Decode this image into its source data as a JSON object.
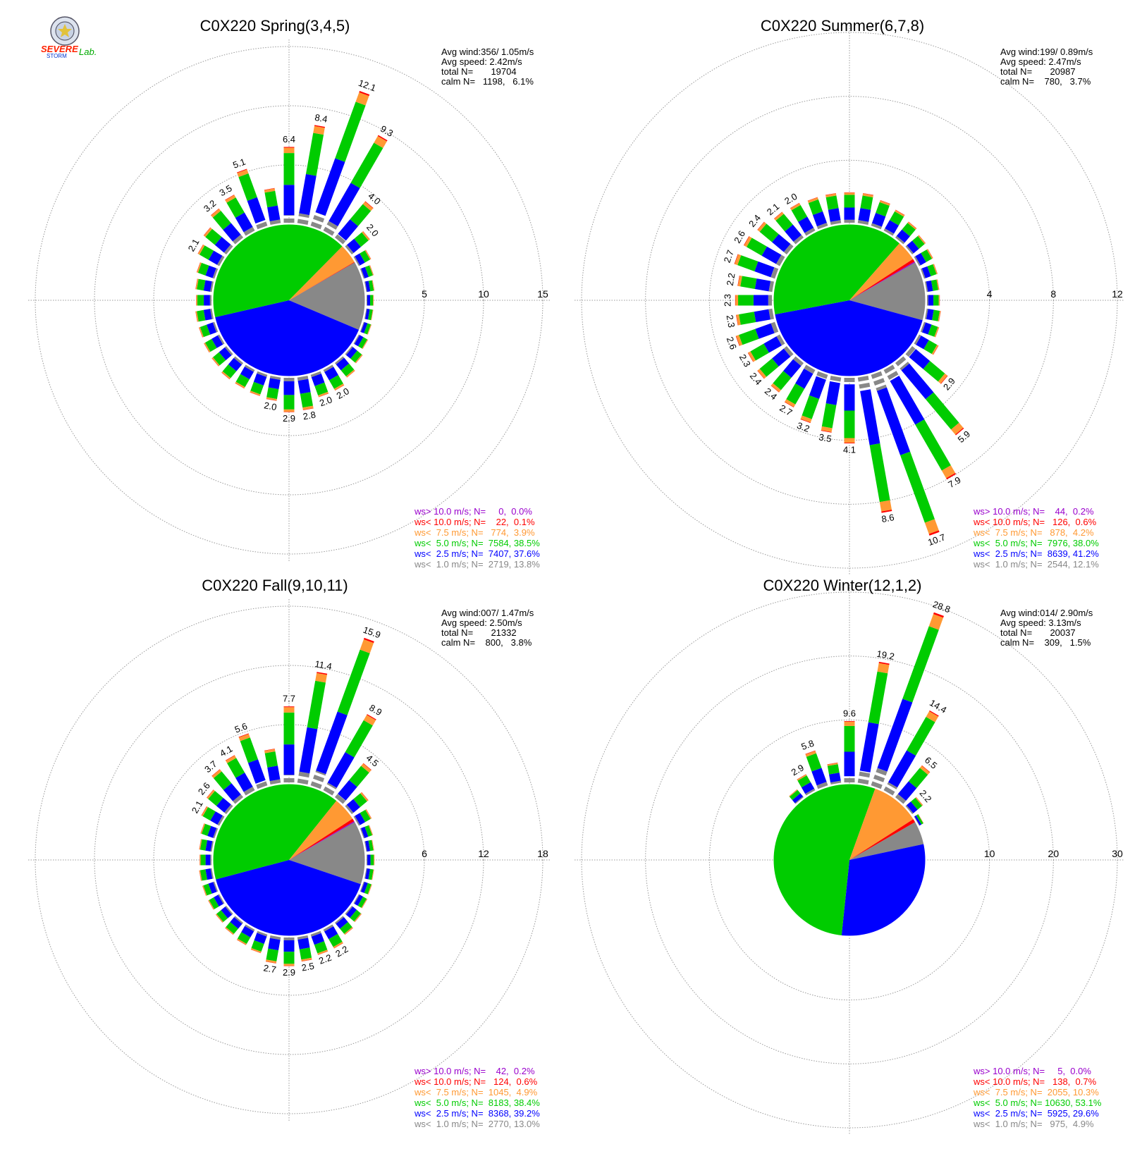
{
  "logo": {
    "line1": "SEVERE",
    "line2": "STORM",
    "line3": "Lab."
  },
  "colors": {
    "purple": "#9900cc",
    "red": "#ff0000",
    "orange": "#ff9933",
    "green": "#00cc00",
    "blue": "#0000ff",
    "gray": "#888888",
    "grid": "#999999"
  },
  "chart_data": [
    {
      "type": "polar-bar",
      "title": "C0X220 Spring(3,4,5)",
      "ring_labels": [
        "5",
        "10",
        "15"
      ],
      "rmax": 15,
      "stats": [
        "Avg wind:356/ 1.05m/s",
        "Avg speed: 2.42m/s",
        "total N=       19704",
        "calm N=   1198,   6.1%"
      ],
      "legend": [
        "ws> 10.0 m/s; N=     0,  0.0%",
        "ws< 10.0 m/s; N=    22,  0.1%",
        "ws<  7.5 m/s; N=   774,  3.9%",
        "ws<  5.0 m/s; N=  7584, 38.5%",
        "ws<  2.5 m/s; N=  7407, 37.6%",
        "ws<  1.0 m/s; N=  2719, 13.8%"
      ],
      "pie": [
        13.8,
        37.6,
        38.5,
        3.9,
        0.1,
        0.0
      ],
      "sectors": [
        {
          "deg": 10,
          "total": 8.4,
          "label": "8.4"
        },
        {
          "deg": 20,
          "total": 12.1,
          "label": "12.1"
        },
        {
          "deg": 30,
          "total": 9.3,
          "label": "9.3"
        },
        {
          "deg": 40,
          "total": 4.0,
          "label": "4.0"
        },
        {
          "deg": 50,
          "total": 2.0,
          "label": "2.0"
        },
        {
          "deg": 60,
          "total": 1.2
        },
        {
          "deg": 70,
          "total": 0.9
        },
        {
          "deg": 80,
          "total": 0.7
        },
        {
          "deg": 90,
          "total": 0.6
        },
        {
          "deg": 100,
          "total": 0.6
        },
        {
          "deg": 110,
          "total": 0.7
        },
        {
          "deg": 120,
          "total": 0.9
        },
        {
          "deg": 130,
          "total": 1.2
        },
        {
          "deg": 140,
          "total": 1.6
        },
        {
          "deg": 150,
          "total": 2.0,
          "label": "2.0"
        },
        {
          "deg": 160,
          "total": 2.0,
          "label": "2.0"
        },
        {
          "deg": 170,
          "total": 2.8,
          "label": "2.8"
        },
        {
          "deg": 180,
          "total": 2.9,
          "label": "2.9"
        },
        {
          "deg": 190,
          "total": 2.0,
          "label": "2.0"
        },
        {
          "deg": 200,
          "total": 1.9
        },
        {
          "deg": 210,
          "total": 1.8
        },
        {
          "deg": 220,
          "total": 1.8
        },
        {
          "deg": 230,
          "total": 1.6
        },
        {
          "deg": 240,
          "total": 1.5
        },
        {
          "deg": 250,
          "total": 1.4
        },
        {
          "deg": 260,
          "total": 1.4
        },
        {
          "deg": 270,
          "total": 1.3
        },
        {
          "deg": 280,
          "total": 1.4
        },
        {
          "deg": 290,
          "total": 1.6
        },
        {
          "deg": 300,
          "total": 2.1,
          "label": "2.1"
        },
        {
          "deg": 310,
          "total": 2.5
        },
        {
          "deg": 320,
          "total": 3.2,
          "label": "3.2"
        },
        {
          "deg": 330,
          "total": 3.5,
          "label": "3.5"
        },
        {
          "deg": 340,
          "total": 5.1,
          "label": "5.1"
        },
        {
          "deg": 350,
          "total": 3.0
        },
        {
          "deg": 360,
          "total": 6.4,
          "label": "6.4"
        }
      ]
    },
    {
      "type": "polar-bar",
      "title": "C0X220 Summer(6,7,8)",
      "ring_labels": [
        "4",
        "8",
        "12"
      ],
      "rmax": 12,
      "stats": [
        "Avg wind:199/ 0.89m/s",
        "Avg speed: 2.47m/s",
        "total N=       20987",
        "calm N=    780,   3.7%"
      ],
      "legend": [
        "ws> 10.0 m/s; N=    44,  0.2%",
        "ws< 10.0 m/s; N=   126,  0.6%",
        "ws<  7.5 m/s; N=   878,  4.2%",
        "ws<  5.0 m/s; N=  7976, 38.0%",
        "ws<  2.5 m/s; N=  8639, 41.2%",
        "ws<  1.0 m/s; N=  2544, 12.1%"
      ],
      "pie": [
        12.1,
        41.2,
        38.0,
        4.2,
        0.6,
        0.2
      ],
      "sectors": [
        {
          "deg": 10,
          "total": 1.9
        },
        {
          "deg": 20,
          "total": 1.7
        },
        {
          "deg": 30,
          "total": 1.5
        },
        {
          "deg": 40,
          "total": 1.3
        },
        {
          "deg": 50,
          "total": 1.1
        },
        {
          "deg": 60,
          "total": 1.0
        },
        {
          "deg": 70,
          "total": 0.9
        },
        {
          "deg": 80,
          "total": 0.8
        },
        {
          "deg": 90,
          "total": 0.8
        },
        {
          "deg": 100,
          "total": 0.9
        },
        {
          "deg": 110,
          "total": 1.0
        },
        {
          "deg": 120,
          "total": 1.4
        },
        {
          "deg": 130,
          "total": 2.9,
          "label": "2.9"
        },
        {
          "deg": 140,
          "total": 5.9,
          "label": "5.9"
        },
        {
          "deg": 150,
          "total": 7.9,
          "label": "7.9"
        },
        {
          "deg": 160,
          "total": 10.7,
          "label": "10.7"
        },
        {
          "deg": 170,
          "total": 8.6,
          "label": "8.6"
        },
        {
          "deg": 180,
          "total": 4.1,
          "label": "4.1"
        },
        {
          "deg": 190,
          "total": 3.5,
          "label": "3.5"
        },
        {
          "deg": 200,
          "total": 3.2,
          "label": "3.2"
        },
        {
          "deg": 210,
          "total": 2.7,
          "label": "2.7"
        },
        {
          "deg": 220,
          "total": 2.4,
          "label": "2.4"
        },
        {
          "deg": 230,
          "total": 2.4,
          "label": "2.4"
        },
        {
          "deg": 240,
          "total": 2.3,
          "label": "2.3"
        },
        {
          "deg": 250,
          "total": 2.6,
          "label": "2.6"
        },
        {
          "deg": 260,
          "total": 2.3,
          "label": "2.3"
        },
        {
          "deg": 270,
          "total": 2.3,
          "label": "2.3"
        },
        {
          "deg": 280,
          "total": 2.2,
          "label": "2.2"
        },
        {
          "deg": 290,
          "total": 2.7,
          "label": "2.7"
        },
        {
          "deg": 300,
          "total": 2.6,
          "label": "2.6"
        },
        {
          "deg": 310,
          "total": 2.4,
          "label": "2.4"
        },
        {
          "deg": 320,
          "total": 2.1,
          "label": "2.1"
        },
        {
          "deg": 330,
          "total": 2.0,
          "label": "2.0"
        },
        {
          "deg": 340,
          "total": 1.9
        },
        {
          "deg": 350,
          "total": 1.9
        },
        {
          "deg": 360,
          "total": 1.9
        }
      ]
    },
    {
      "type": "polar-bar",
      "title": "C0X220 Fall(9,10,11)",
      "ring_labels": [
        "6",
        "12",
        "18"
      ],
      "rmax": 18,
      "stats": [
        "Avg wind:007/ 1.47m/s",
        "Avg speed: 2.50m/s",
        "total N=       21332",
        "calm N=    800,   3.8%"
      ],
      "legend": [
        "ws> 10.0 m/s; N=    42,  0.2%",
        "ws< 10.0 m/s; N=   124,  0.6%",
        "ws<  7.5 m/s; N=  1045,  4.9%",
        "ws<  5.0 m/s; N=  8183, 38.4%",
        "ws<  2.5 m/s; N=  8368, 39.2%",
        "ws<  1.0 m/s; N=  2770, 13.0%"
      ],
      "pie": [
        13.0,
        39.2,
        38.4,
        4.9,
        0.6,
        0.2
      ],
      "sectors": [
        {
          "deg": 10,
          "total": 11.4,
          "label": "11.4"
        },
        {
          "deg": 20,
          "total": 15.9,
          "label": "15.9"
        },
        {
          "deg": 30,
          "total": 8.9,
          "label": "8.9"
        },
        {
          "deg": 40,
          "total": 4.5,
          "label": "4.5"
        },
        {
          "deg": 50,
          "total": 2.2
        },
        {
          "deg": 60,
          "total": 1.5
        },
        {
          "deg": 70,
          "total": 1.0
        },
        {
          "deg": 80,
          "total": 0.8
        },
        {
          "deg": 90,
          "total": 0.8
        },
        {
          "deg": 100,
          "total": 0.8
        },
        {
          "deg": 110,
          "total": 0.9
        },
        {
          "deg": 120,
          "total": 1.0
        },
        {
          "deg": 130,
          "total": 1.3
        },
        {
          "deg": 140,
          "total": 1.6
        },
        {
          "deg": 150,
          "total": 2.2,
          "label": "2.2"
        },
        {
          "deg": 160,
          "total": 2.2,
          "label": "2.2"
        },
        {
          "deg": 170,
          "total": 2.5,
          "label": "2.5"
        },
        {
          "deg": 180,
          "total": 2.9,
          "label": "2.9"
        },
        {
          "deg": 190,
          "total": 2.7,
          "label": "2.7"
        },
        {
          "deg": 200,
          "total": 2.0
        },
        {
          "deg": 210,
          "total": 1.8
        },
        {
          "deg": 220,
          "total": 1.6
        },
        {
          "deg": 230,
          "total": 1.4
        },
        {
          "deg": 240,
          "total": 1.3
        },
        {
          "deg": 250,
          "total": 1.3
        },
        {
          "deg": 260,
          "total": 1.3
        },
        {
          "deg": 270,
          "total": 1.2
        },
        {
          "deg": 280,
          "total": 1.3
        },
        {
          "deg": 290,
          "total": 1.5
        },
        {
          "deg": 300,
          "total": 2.1,
          "label": "2.1"
        },
        {
          "deg": 310,
          "total": 2.6,
          "label": "2.6"
        },
        {
          "deg": 320,
          "total": 3.7,
          "label": "3.7"
        },
        {
          "deg": 330,
          "total": 4.1,
          "label": "4.1"
        },
        {
          "deg": 340,
          "total": 5.6,
          "label": "5.6"
        },
        {
          "deg": 350,
          "total": 3.5
        },
        {
          "deg": 360,
          "total": 7.7,
          "label": "7.7"
        }
      ]
    },
    {
      "type": "polar-bar",
      "title": "C0X220 Winter(12,1,2)",
      "ring_labels": [
        "10",
        "20",
        "30"
      ],
      "rmax": 30,
      "stats": [
        "Avg wind:014/ 2.90m/s",
        "Avg speed: 3.13m/s",
        "total N=       20037",
        "calm N=    309,   1.5%"
      ],
      "legend": [
        "ws> 10.0 m/s; N=     5,  0.0%",
        "ws< 10.0 m/s; N=   138,  0.7%",
        "ws<  7.5 m/s; N=  2055, 10.3%",
        "ws<  5.0 m/s; N= 10630, 53.1%",
        "ws<  2.5 m/s; N=  5925, 29.6%",
        "ws<  1.0 m/s; N=   975,  4.9%"
      ],
      "pie": [
        4.9,
        29.6,
        53.1,
        10.3,
        0.7,
        0.0
      ],
      "sectors": [
        {
          "deg": 10,
          "total": 19.2,
          "label": "19.2"
        },
        {
          "deg": 20,
          "total": 28.8,
          "label": "28.8"
        },
        {
          "deg": 30,
          "total": 14.4,
          "label": "14.4"
        },
        {
          "deg": 40,
          "total": 6.5,
          "label": "6.5"
        },
        {
          "deg": 50,
          "total": 2.2,
          "label": "2.2"
        },
        {
          "deg": 60,
          "total": 0.8
        },
        {
          "deg": 340,
          "total": 5.8,
          "label": "5.8"
        },
        {
          "deg": 330,
          "total": 2.9,
          "label": "2.9"
        },
        {
          "deg": 320,
          "total": 1.6
        },
        {
          "deg": 350,
          "total": 3.2
        },
        {
          "deg": 360,
          "total": 9.6,
          "label": "9.6"
        }
      ]
    }
  ]
}
